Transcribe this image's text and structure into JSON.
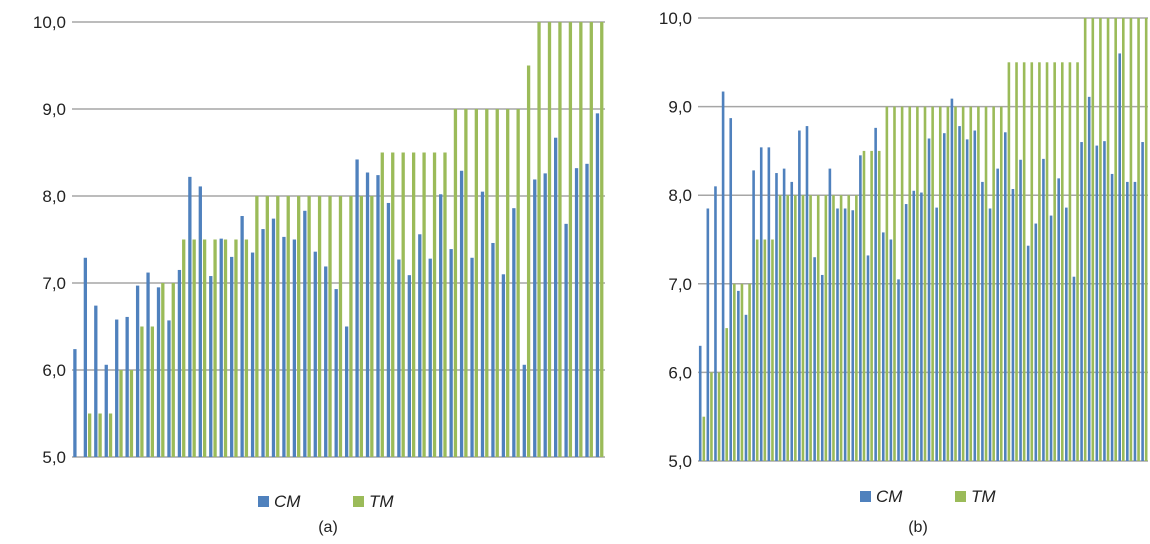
{
  "colors": {
    "cm": "#4f81bd",
    "tm": "#9bbb59",
    "grid": "#a6a6a6"
  },
  "chart_data": [
    {
      "type": "bar",
      "caption": "(a)",
      "ylim": [
        5,
        10
      ],
      "yticks": [
        "5,0",
        "6,0",
        "7,0",
        "8,0",
        "9,0",
        "10,0"
      ],
      "grid": true,
      "legend": "bottom-center",
      "series": [
        {
          "name": "CM",
          "values": [
            6.24,
            7.29,
            6.74,
            6.06,
            6.58,
            6.61,
            6.97,
            7.12,
            6.95,
            6.57,
            7.15,
            8.22,
            8.11,
            7.08,
            7.51,
            7.3,
            7.77,
            7.35,
            7.62,
            7.74,
            7.53,
            7.5,
            7.83,
            7.36,
            7.19,
            6.93,
            6.5,
            8.42,
            8.27,
            8.24,
            7.92,
            7.27,
            7.09,
            7.56,
            7.28,
            8.02,
            7.39,
            8.29,
            7.29,
            8.05,
            7.46,
            7.1,
            7.86,
            6.06,
            8.19,
            8.26,
            8.67,
            7.68,
            8.32,
            8.37,
            8.95
          ]
        },
        {
          "name": "TM",
          "values": [
            5.0,
            5.5,
            5.5,
            5.5,
            6.0,
            6.0,
            6.5,
            6.5,
            7.0,
            7.0,
            7.5,
            7.5,
            7.5,
            7.5,
            7.5,
            7.5,
            7.5,
            8.0,
            8.0,
            8.0,
            8.0,
            8.0,
            8.0,
            8.0,
            8.0,
            8.0,
            8.0,
            8.0,
            8.0,
            8.5,
            8.5,
            8.5,
            8.5,
            8.5,
            8.5,
            8.5,
            9.0,
            9.0,
            9.0,
            9.0,
            9.0,
            9.0,
            9.0,
            9.5,
            10.0,
            10.0,
            10.0,
            10.0,
            10.0,
            10.0,
            10.0
          ]
        }
      ]
    },
    {
      "type": "bar",
      "caption": "(b)",
      "ylim": [
        5,
        10
      ],
      "yticks": [
        "5,0",
        "6,0",
        "7,0",
        "8,0",
        "9,0",
        "10,0"
      ],
      "grid": true,
      "legend": "bottom-center",
      "series": [
        {
          "name": "CM",
          "values": [
            6.3,
            7.85,
            8.1,
            9.17,
            8.87,
            6.92,
            6.65,
            8.28,
            8.54,
            8.54,
            8.25,
            8.3,
            8.15,
            8.73,
            8.78,
            7.3,
            7.1,
            8.3,
            7.85,
            7.85,
            7.83,
            8.45,
            7.32,
            8.76,
            7.58,
            7.5,
            7.05,
            7.9,
            8.05,
            8.03,
            8.64,
            7.86,
            8.7,
            9.09,
            8.78,
            8.63,
            8.73,
            8.15,
            7.85,
            8.3,
            8.71,
            8.07,
            8.4,
            7.43,
            7.68,
            8.41,
            7.77,
            8.19,
            7.86,
            7.08,
            8.6,
            9.11,
            8.56,
            8.61,
            8.24,
            9.6,
            8.15,
            8.15,
            8.6
          ]
        },
        {
          "name": "TM",
          "values": [
            5.5,
            6.0,
            6.0,
            6.5,
            7.0,
            7.0,
            7.0,
            7.5,
            7.5,
            7.5,
            8.0,
            8.0,
            8.0,
            8.0,
            8.0,
            8.0,
            8.0,
            8.0,
            8.0,
            8.0,
            8.0,
            8.5,
            8.5,
            8.5,
            9.0,
            9.0,
            9.0,
            9.0,
            9.0,
            9.0,
            9.0,
            9.0,
            9.0,
            9.0,
            9.0,
            9.0,
            9.0,
            9.0,
            9.0,
            9.0,
            9.5,
            9.5,
            9.5,
            9.5,
            9.5,
            9.5,
            9.5,
            9.5,
            9.5,
            9.5,
            10.0,
            10.0,
            10.0,
            10.0,
            10.0,
            10.0,
            10.0,
            10.0,
            10.0
          ]
        }
      ]
    }
  ]
}
